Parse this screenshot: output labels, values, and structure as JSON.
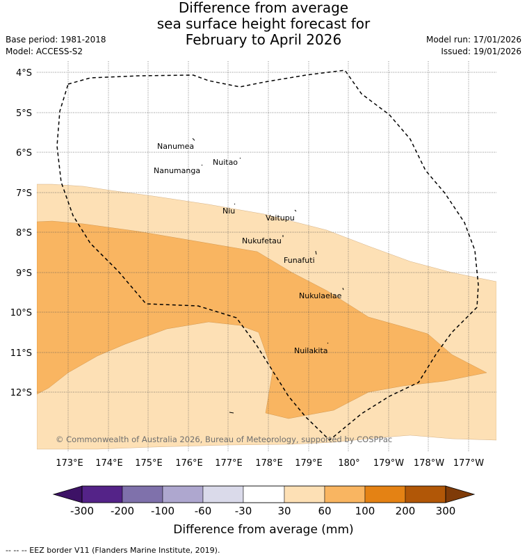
{
  "title": {
    "line1": "Difference from average",
    "line2": "sea surface height forecast for",
    "line3": "February to April 2026"
  },
  "meta": {
    "base_period": "Base period: 1981-2018",
    "model": "Model: ACCESS-S2",
    "model_run": "Model run: 17/01/2026",
    "issued": "Issued: 19/01/2026"
  },
  "axes": {
    "lat_labels": [
      "4°S",
      "5°S",
      "6°S",
      "7°S",
      "8°S",
      "9°S",
      "10°S",
      "11°S",
      "12°S"
    ],
    "lon_labels": [
      "173°E",
      "174°E",
      "175°E",
      "176°E",
      "177°E",
      "178°E",
      "179°E",
      "180°",
      "179°W",
      "178°W",
      "177°W"
    ]
  },
  "places": [
    {
      "name": "Nanumea"
    },
    {
      "name": "Nuitao"
    },
    {
      "name": "Nanumanga"
    },
    {
      "name": "Niu"
    },
    {
      "name": "Vaitupu"
    },
    {
      "name": "Nukufetau"
    },
    {
      "name": "Funafuti"
    },
    {
      "name": "Nukulaelae"
    },
    {
      "name": "Nuilakita"
    }
  ],
  "copyright": "© Commonwealth of Australia 2026, Bureau of Meteorology, supported by COSPPac",
  "colorbar": {
    "label": "Difference from average (mm)",
    "ticks": [
      "-300",
      "-200",
      "-100",
      "-60",
      "-30",
      "30",
      "60",
      "100",
      "200",
      "300"
    ],
    "colors": [
      "#3d1266",
      "#542388",
      "#7f71ab",
      "#aea7cf",
      "#dadaea",
      "#ffffff",
      "#fde0b5",
      "#f9b561",
      "#e48214",
      "#b15707",
      "#7f3b08"
    ]
  },
  "footer": "-- -- -- EEZ border V11 (Flanders Marine Institute, 2019)."
}
